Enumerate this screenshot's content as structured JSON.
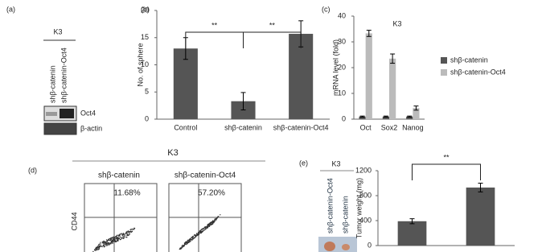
{
  "chart_data": [
    {
      "type": "bar",
      "panel": "(b)",
      "ylabel": "No. of sphere",
      "categories": [
        "Control",
        "shβ-catenin",
        "shβ-catenin-Oct4"
      ],
      "values": [
        13,
        3.3,
        15.7
      ],
      "errors": [
        2,
        1.6,
        2.4
      ],
      "color": "#555555",
      "ylim": [
        0,
        20
      ],
      "yticks": [
        0,
        5,
        10,
        15,
        20
      ],
      "annotations": [
        "**",
        "**"
      ]
    },
    {
      "type": "bar",
      "panel": "(c)",
      "title": "K3",
      "ylabel": "mRNA level (fold)",
      "categories": [
        "Oct",
        "Sox2",
        "Nanog"
      ],
      "series": [
        {
          "name": "shβ-catenin",
          "color": "#555555",
          "values": [
            1,
            1,
            1
          ],
          "errors": [
            0.2,
            0.2,
            0.2
          ]
        },
        {
          "name": "shβ-catenin-Oct4",
          "color": "#bbbbbb",
          "values": [
            33.3,
            23.5,
            4.3
          ],
          "errors": [
            1.2,
            1.8,
            0.8
          ]
        }
      ],
      "ylim": [
        0,
        40
      ],
      "yticks": [
        0,
        10,
        20,
        30,
        40
      ]
    },
    {
      "type": "bar",
      "panel": "(e)",
      "ylabel": "Tumor weight (mg)",
      "categories": [
        null,
        null
      ],
      "values": [
        390,
        930
      ],
      "errors": [
        40,
        70
      ],
      "color": "#555555",
      "ylim": [
        0,
        1200
      ],
      "yticks": [
        0,
        400,
        800,
        1200
      ],
      "annotations": [
        "**"
      ]
    }
  ],
  "panel_a": {
    "label": "(a)",
    "title": "K3",
    "lanes": [
      "shβ-catenin",
      "shβ-catenin-Oct4"
    ],
    "bands": [
      "Oct4",
      "β-actin"
    ]
  },
  "panel_d": {
    "label": "(d)",
    "title": "K3",
    "plots": [
      {
        "name": "shβ-catenin",
        "percent": "11.68%"
      },
      {
        "name": "shβ-catenin-Oct4",
        "percent": "57.20%"
      }
    ],
    "ylabel": "CD44"
  },
  "panel_e": {
    "title": "K3",
    "lanes": [
      "shβ-catenin-Oct4",
      "shβ-catenin"
    ]
  }
}
